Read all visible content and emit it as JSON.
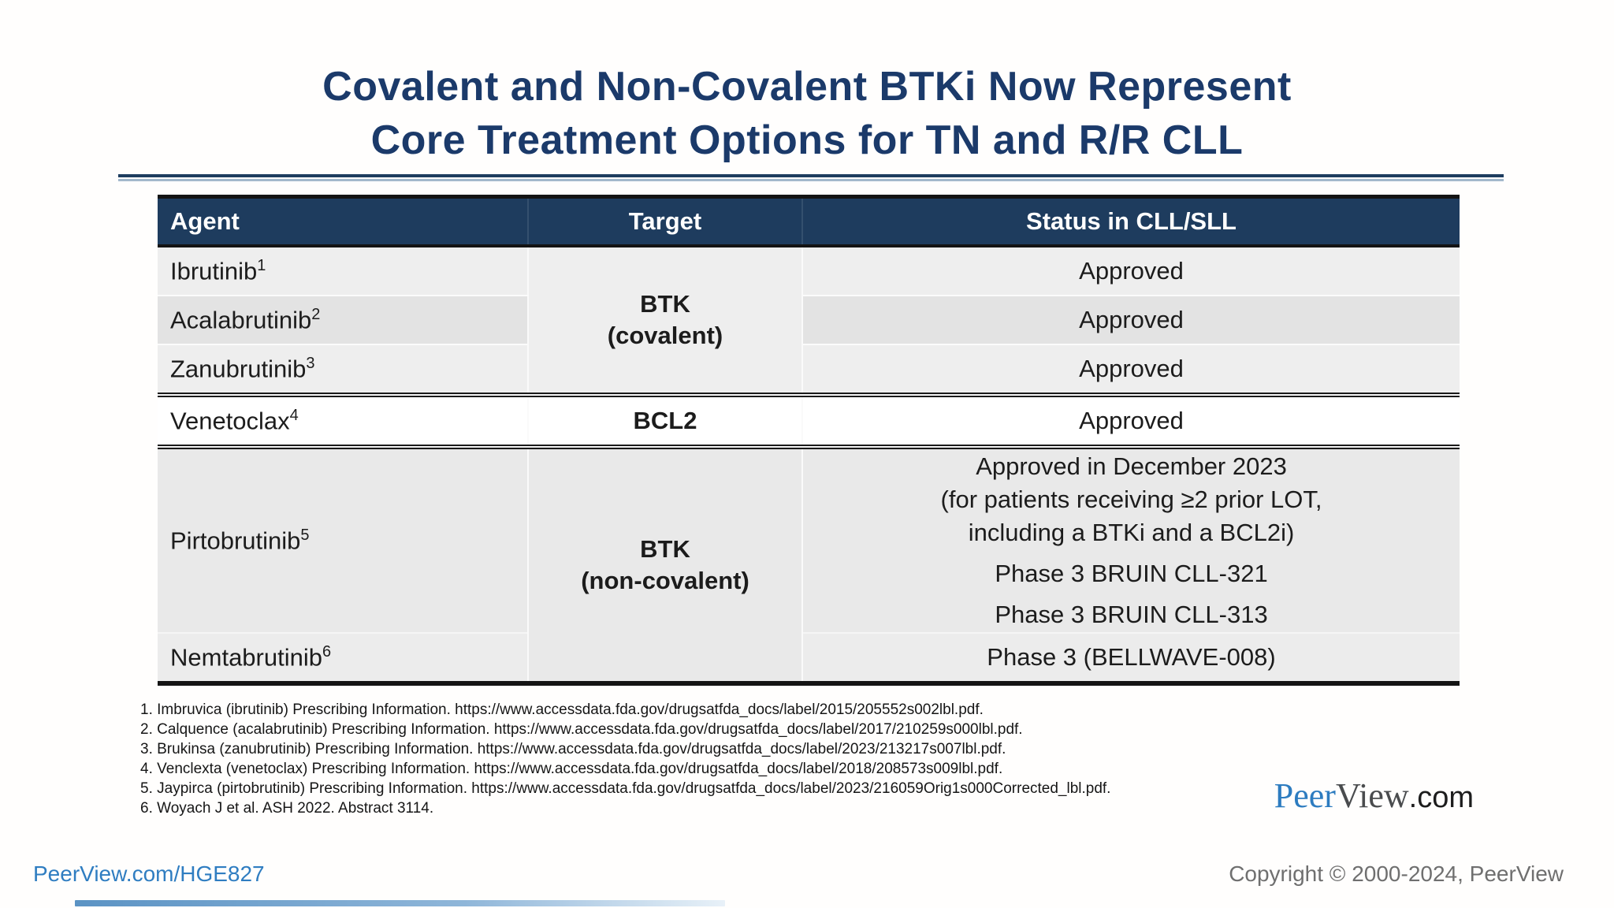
{
  "slide": {
    "title_line1": "Covalent and Non-Covalent BTKi Now Represent",
    "title_line2": "Core Treatment Options for TN and R/R CLL"
  },
  "table": {
    "headers": [
      "Agent",
      "Target",
      "Status in CLL/SLL"
    ],
    "merged": {
      "covalent": {
        "line1": "BTK",
        "line2": "(covalent)"
      },
      "noncovalent": {
        "line1": "BTK",
        "line2": "(non-covalent)"
      }
    },
    "rows": [
      {
        "agent": "Ibrutinib",
        "sup": "1",
        "status": "Approved"
      },
      {
        "agent": "Acalabrutinib",
        "sup": "2",
        "status": "Approved"
      },
      {
        "agent": "Zanubrutinib",
        "sup": "3",
        "status": "Approved"
      },
      {
        "agent": "Venetoclax",
        "sup": "4",
        "target": "BCL2",
        "status": "Approved"
      },
      {
        "agent": "Pirtobrutinib",
        "sup": "5",
        "status_lines": [
          "Approved in December 2023",
          "(for patients receiving ≥2 prior LOT,",
          "including a BTKi and a BCL2i)",
          "Phase 3 BRUIN CLL-321",
          "Phase 3 BRUIN CLL-313"
        ]
      },
      {
        "agent": "Nemtabrutinib",
        "sup": "6",
        "status": "Phase 3 (BELLWAVE-008)"
      }
    ]
  },
  "footnotes": [
    "1. Imbruvica (ibrutinib) Prescribing Information. https://www.accessdata.fda.gov/drugsatfda_docs/label/2015/205552s002lbl.pdf.",
    "2. Calquence (acalabrutinib) Prescribing Information. https://www.accessdata.fda.gov/drugsatfda_docs/label/2017/210259s000lbl.pdf.",
    "3. Brukinsa (zanubrutinib) Prescribing Information. https://www.accessdata.fda.gov/drugsatfda_docs/label/2023/213217s007lbl.pdf.",
    "4. Venclexta (venetoclax) Prescribing Information. https://www.accessdata.fda.gov/drugsatfda_docs/label/2018/208573s009lbl.pdf.",
    "5. Jaypirca (pirtobrutinib) Prescribing Information. https://www.accessdata.fda.gov/drugsatfda_docs/label/2023/216059Orig1s000Corrected_lbl.pdf.",
    "6. Woyach J et al. ASH 2022. Abstract 3114."
  ],
  "logo": {
    "peer": "Peer",
    "view": "View",
    "com": ".com"
  },
  "footer": {
    "link": "PeerView.com/HGE827",
    "copyright": "Copyright © 2000-2024, PeerView"
  },
  "colors": {
    "title_navy": "#1b3a6a",
    "header_navy": "#1e3c5e",
    "link_blue": "#2f7dc1",
    "copyright_gray": "#6f6f6f",
    "row_gray_light": "#eeeeee",
    "row_gray_dark": "#e3e3e3",
    "border_black": "#141414"
  }
}
